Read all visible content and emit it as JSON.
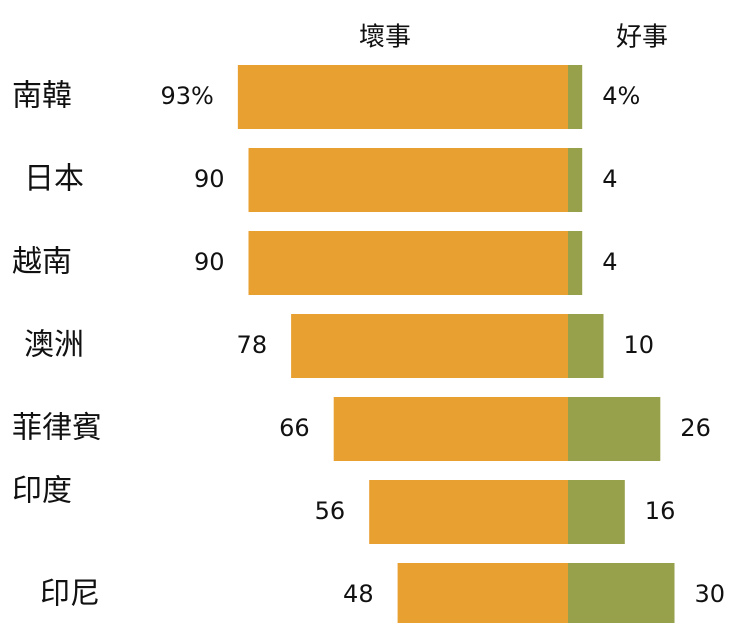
{
  "chart_data": {
    "type": "bar",
    "orientation": "diverging-horizontal",
    "categories": [
      "南韓",
      "日本",
      "越南",
      "澳洲",
      "菲律賓",
      "印度",
      "印尼"
    ],
    "series": [
      {
        "name": "壞事",
        "color": "#e8a030",
        "values": [
          93,
          90,
          90,
          78,
          66,
          56,
          48
        ],
        "value_labels": [
          "93%",
          "90",
          "90",
          "78",
          "66",
          "56",
          "48"
        ]
      },
      {
        "name": "好事",
        "color": "#97a04a",
        "values": [
          4,
          4,
          4,
          10,
          26,
          16,
          30
        ],
        "value_labels": [
          "4%",
          "4",
          "4",
          "10",
          "26",
          "16",
          "30"
        ]
      }
    ]
  }
}
